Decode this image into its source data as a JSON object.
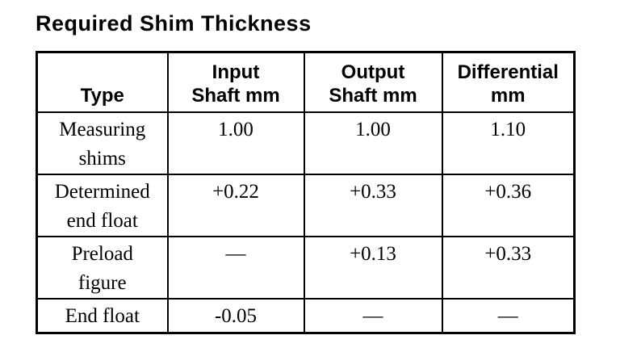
{
  "title": "Required Shim Thickness",
  "table": {
    "headers": {
      "type": "Type",
      "input": "Input\nShaft mm",
      "output": "Output\nShaft mm",
      "differential": "Differential\nmm"
    },
    "rows": [
      {
        "type": "Measuring\nshims",
        "input": "1.00",
        "output": "1.00",
        "differential": "1.10"
      },
      {
        "type": "Determined\nend float",
        "input": "+0.22",
        "output": "+0.33",
        "differential": "+0.36"
      },
      {
        "type": "Preload\nfigure",
        "input": "—",
        "output": "+0.13",
        "differential": "+0.33"
      },
      {
        "type": "End float",
        "input": "-0.05",
        "output": "—",
        "differential": "—"
      }
    ]
  },
  "colors": {
    "ink": "#000000",
    "paper": "#ffffff"
  }
}
